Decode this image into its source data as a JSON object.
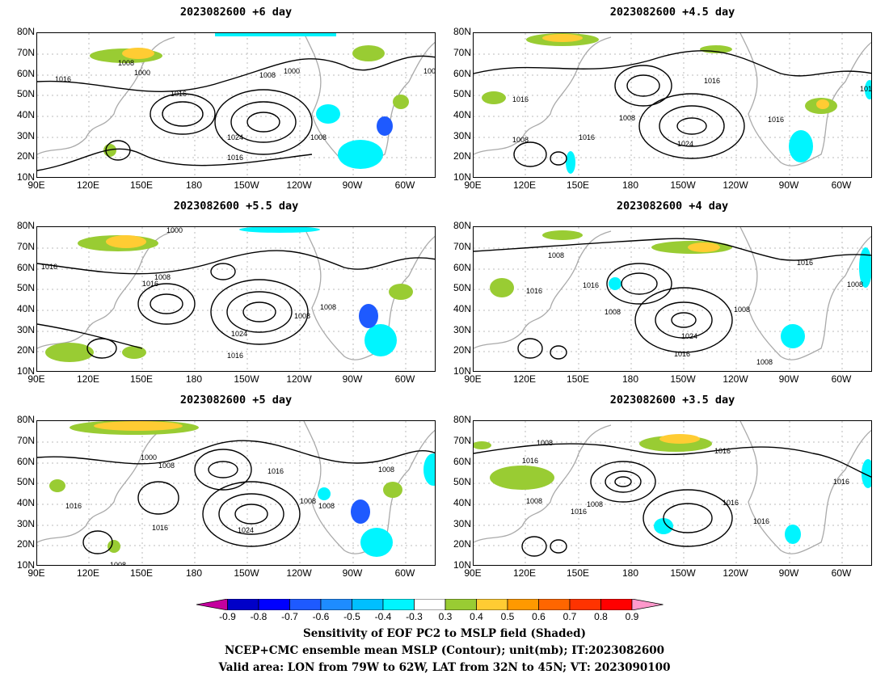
{
  "panels": [
    {
      "title": "2023082600 +6 day"
    },
    {
      "title": "2023082600 +4.5 day"
    },
    {
      "title": "2023082600 +5.5 day"
    },
    {
      "title": "2023082600 +4 day"
    },
    {
      "title": "2023082600 +5 day"
    },
    {
      "title": "2023082600 +3.5 day"
    }
  ],
  "axes": {
    "lat_labels": [
      "80N",
      "70N",
      "60N",
      "50N",
      "40N",
      "30N",
      "20N",
      "10N"
    ],
    "lon_labels": [
      "90E",
      "120E",
      "150E",
      "180",
      "150W",
      "120W",
      "90W",
      "60W"
    ]
  },
  "contour_labels": {
    "p0": [
      "1008",
      "1000",
      "1016",
      "1008",
      "1000",
      "1016",
      "1024",
      "1016",
      "1008",
      "100"
    ],
    "p1": [
      "1016",
      "1016",
      "1008",
      "1016",
      "1024",
      "1008",
      "1016",
      "101"
    ],
    "p2": [
      "1000",
      "1016",
      "1008",
      "1016",
      "1024",
      "1008",
      "1008",
      "1016"
    ],
    "p3": [
      "1008",
      "1016",
      "1016",
      "1008",
      "1008",
      "1016",
      "1024",
      "1008",
      "1016",
      "1008"
    ],
    "p4": [
      "1000",
      "1008",
      "1016",
      "1016",
      "1024",
      "1008",
      "1008",
      "1008",
      "1016",
      "1008"
    ],
    "p5": [
      "1008",
      "1016",
      "1016",
      "1008",
      "1008",
      "1016",
      "1016",
      "1016",
      "1016"
    ]
  },
  "colorbar": {
    "ticks": [
      "-0.9",
      "-0.8",
      "-0.7",
      "-0.6",
      "-0.5",
      "-0.4",
      "-0.3",
      "0.3",
      "0.4",
      "0.5",
      "0.6",
      "0.7",
      "0.8",
      "0.9"
    ],
    "colors": [
      "#c4009e",
      "#0000c8",
      "#0000ff",
      "#1e5aff",
      "#1e8cff",
      "#00bfff",
      "#00f5ff",
      "#ffffff",
      "#99cc33",
      "#ffcc33",
      "#ff9900",
      "#ff6600",
      "#ff3300",
      "#ff0000",
      "#ff99cc"
    ]
  },
  "caption": {
    "line1": "Sensitivity of EOF PC2 to MSLP field (Shaded)",
    "line2": "NCEP+CMC ensemble mean MSLP (Contour); unit(mb); IT:2023082600",
    "line3": "Valid area: LON from 79W to 62W, LAT from 32N to 45N; VT: 2023090100"
  }
}
